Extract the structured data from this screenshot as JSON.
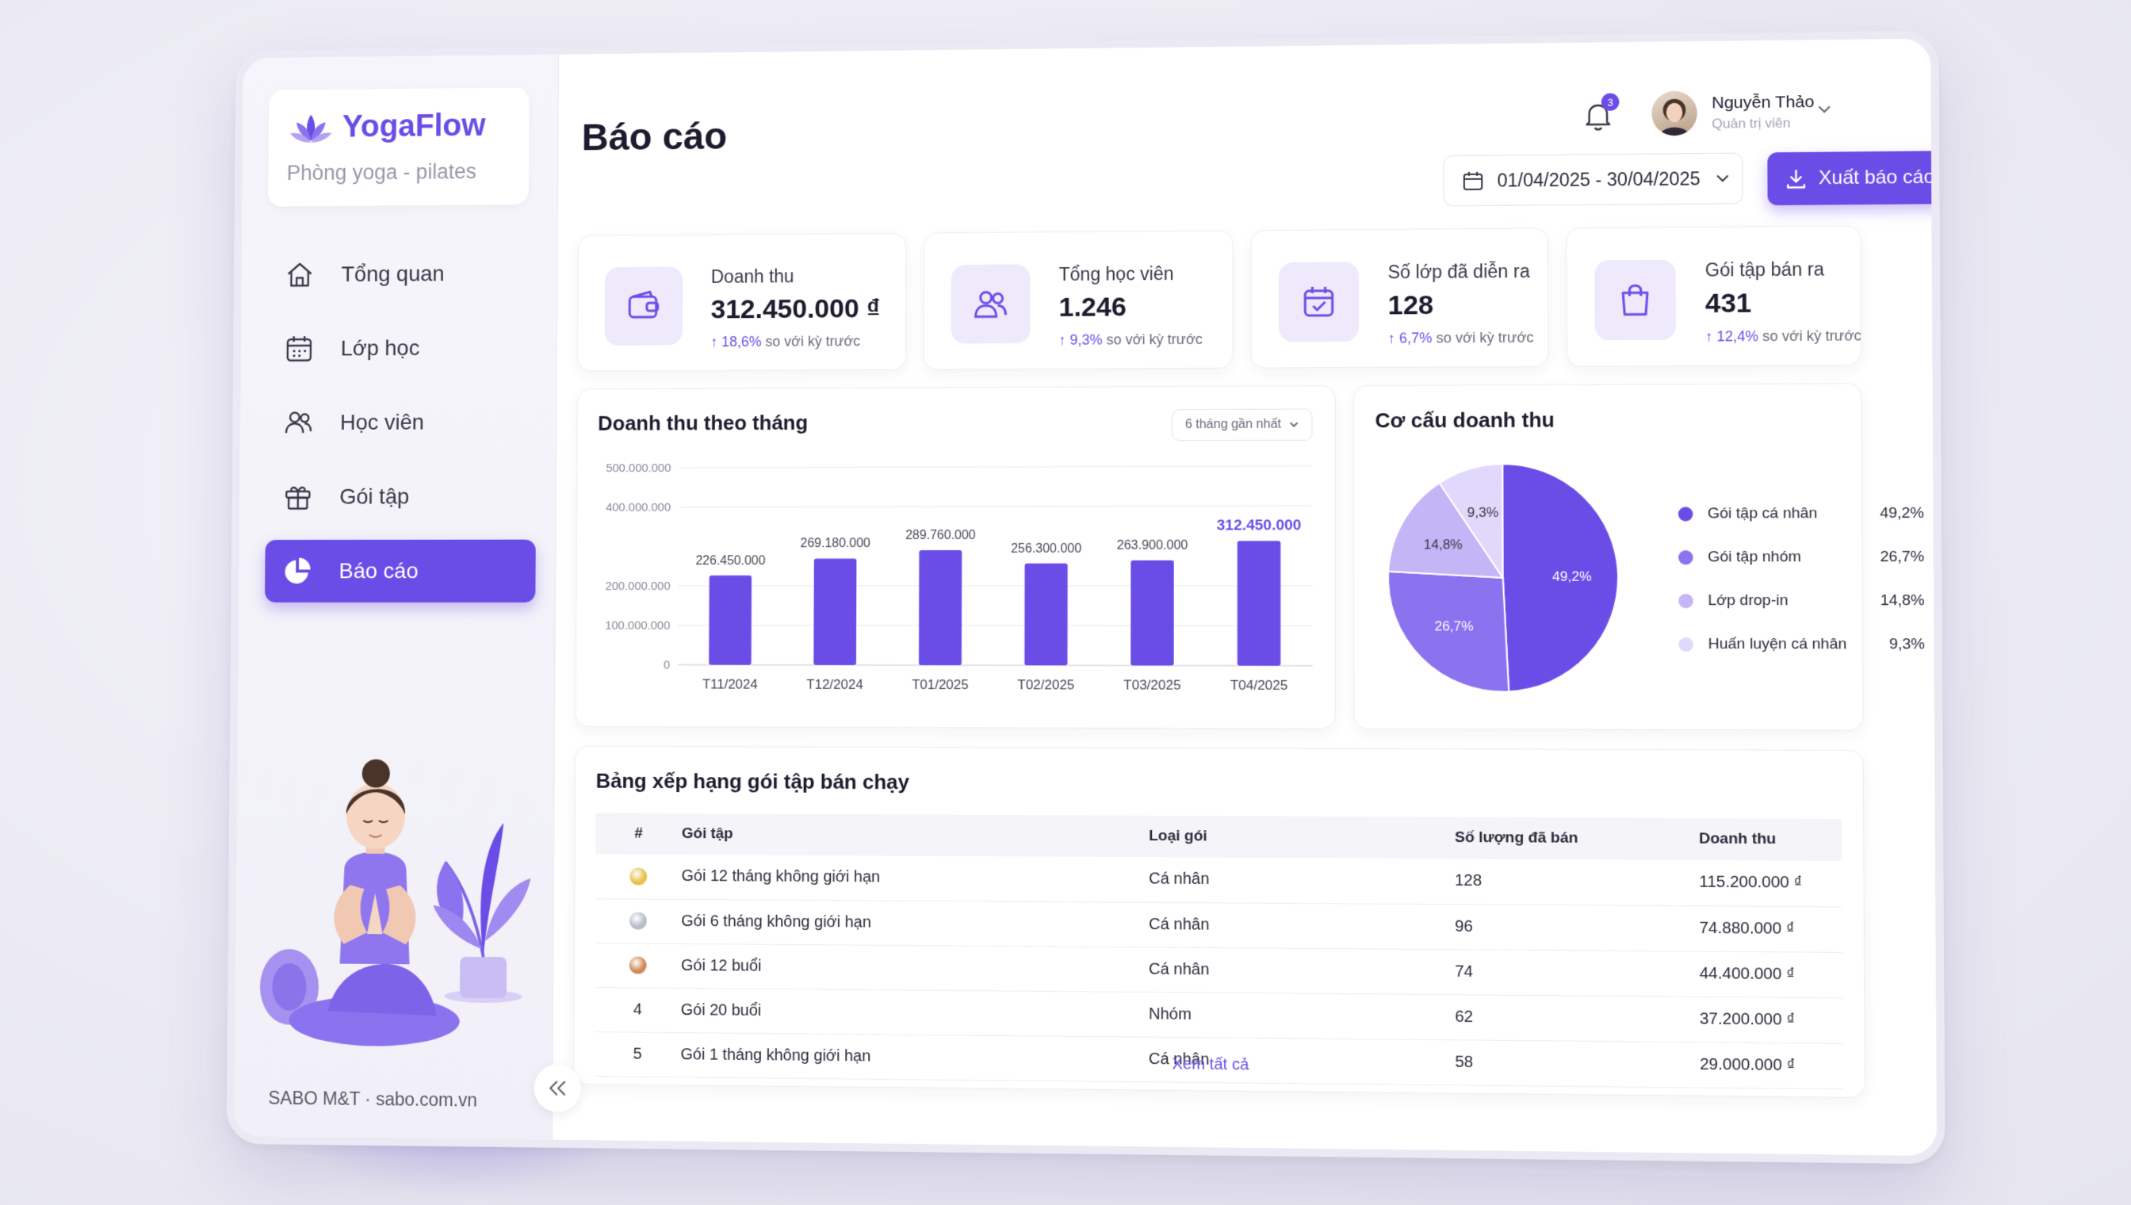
{
  "brand": {
    "name": "YogaFlow",
    "subtitle": "Phòng yoga - pilates",
    "footer": "SABO M&T · sabo.com.vn"
  },
  "nav": [
    {
      "label": "Tổng quan",
      "icon": "home-icon",
      "active": false
    },
    {
      "label": "Lớp học",
      "icon": "calendar-icon",
      "active": false
    },
    {
      "label": "Học viên",
      "icon": "users-icon",
      "active": false
    },
    {
      "label": "Gói tập",
      "icon": "gift-icon",
      "active": false
    },
    {
      "label": "Báo cáo",
      "icon": "pie-chart-icon",
      "active": true
    }
  ],
  "header": {
    "title": "Báo cáo",
    "notifications": "3",
    "user": {
      "name": "Nguyễn Thảo",
      "role": "Quản trị viên"
    },
    "date_range": "01/04/2025 - 30/04/2025",
    "export_label": "Xuất báo cáo Excel"
  },
  "kpis": [
    {
      "label": "Doanh thu",
      "value": "312.450.000 ₫",
      "delta": "↑ 18,6%",
      "note": "so với kỳ trước",
      "icon": "wallet-icon"
    },
    {
      "label": "Tổng học viên",
      "value": "1.246",
      "delta": "↑ 9,3%",
      "note": "so với kỳ trước",
      "icon": "users-icon"
    },
    {
      "label": "Số lớp đã diễn ra",
      "value": "128",
      "delta": "↑ 6,7%",
      "note": "so với kỳ trước",
      "icon": "calendar-check-icon"
    },
    {
      "label": "Gói tập bán ra",
      "value": "431",
      "delta": "↑ 12,4%",
      "note": "so với kỳ trước",
      "icon": "shopping-bag-icon"
    }
  ],
  "revenue_chart": {
    "title": "Doanh thu theo tháng",
    "range": "6 tháng gần nhất"
  },
  "share_chart": {
    "title": "Cơ cấu doanh thu"
  },
  "chart_data": [
    {
      "type": "bar",
      "title": "Doanh thu theo tháng",
      "categories": [
        "T11/2024",
        "T12/2024",
        "T01/2025",
        "T02/2025",
        "T03/2025",
        "T04/2025"
      ],
      "values": [
        226450000,
        269180000,
        289760000,
        256300000,
        263900000,
        312450000
      ],
      "value_labels": [
        "226.450.000",
        "269.180.000",
        "289.760.000",
        "256.300.000",
        "263.900.000",
        "312.450.000"
      ],
      "y_ticks": [
        0,
        100000000,
        200000000,
        400000000,
        500000000
      ],
      "y_tick_labels": [
        "0",
        "100.000.000",
        "200.000.000",
        "400.000.000",
        "500.000.000"
      ],
      "ylim": [
        0,
        500000000
      ],
      "bar_color": "#6a4de6",
      "highlight_last": true
    },
    {
      "type": "pie",
      "title": "Cơ cấu doanh thu",
      "labels": [
        "Gói tập cá nhân",
        "Gói tập nhóm",
        "Lớp drop-in",
        "Huấn luyện cá nhân"
      ],
      "values": [
        49.2,
        26.7,
        14.8,
        9.3
      ],
      "value_labels": [
        "49,2%",
        "26,7%",
        "14,8%",
        "9,3%"
      ],
      "colors": [
        "#6a4de6",
        "#8b72ee",
        "#c3b5f6",
        "#e1d9fb"
      ],
      "legend_position": "right"
    }
  ],
  "ranking": {
    "title": "Bảng xếp hạng gói tập bán chạy",
    "columns": [
      "#",
      "Gói tập",
      "Loại gói",
      "Số lượng đã bán",
      "Doanh thu"
    ],
    "rows": [
      {
        "rank": "",
        "medal": "gold",
        "name": "Gói 12 tháng không giới hạn",
        "type": "Cá nhân",
        "qty": "128",
        "revenue": "115.200.000 ₫"
      },
      {
        "rank": "",
        "medal": "silver",
        "name": "Gói 6 tháng không giới hạn",
        "type": "Cá nhân",
        "qty": "96",
        "revenue": "74.880.000 ₫"
      },
      {
        "rank": "",
        "medal": "bronze",
        "name": "Gói 12 buổi",
        "type": "Cá nhân",
        "qty": "74",
        "revenue": "44.400.000 ₫"
      },
      {
        "rank": "4",
        "medal": "",
        "name": "Gói 20 buổi",
        "type": "Nhóm",
        "qty": "62",
        "revenue": "37.200.000 ₫"
      },
      {
        "rank": "5",
        "medal": "",
        "name": "Gói 1 tháng không giới hạn",
        "type": "Cá nhân",
        "qty": "58",
        "revenue": "29.000.000 ₫"
      }
    ],
    "see_all": "Xem tất cả"
  }
}
